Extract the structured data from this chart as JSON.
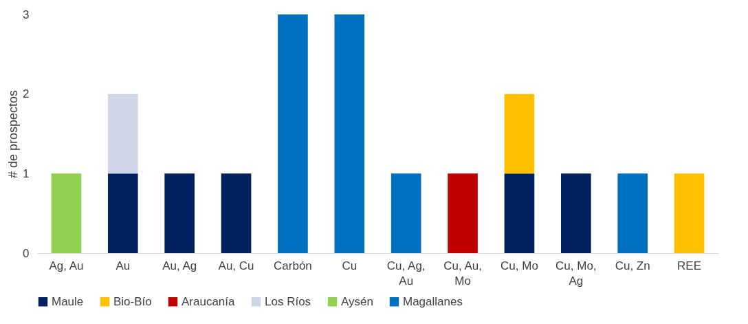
{
  "chart_data": {
    "type": "bar",
    "stacked": true,
    "ylabel": "# de prospectos",
    "categories": [
      "Ag, Au",
      "Au",
      "Au, Ag",
      "Au, Cu",
      "Carbón",
      "Cu",
      "Cu, Ag, Au",
      "Cu, Au, Mo",
      "Cu, Mo",
      "Cu, Mo, Ag",
      "Cu, Zn",
      "REE"
    ],
    "series": [
      {
        "name": "Maule",
        "color": "#002060",
        "values": [
          null,
          1,
          1,
          1,
          null,
          null,
          null,
          null,
          1,
          1,
          null,
          null
        ]
      },
      {
        "name": "Bio-Bío",
        "color": "#ffc000",
        "values": [
          null,
          null,
          null,
          null,
          null,
          null,
          null,
          null,
          1,
          null,
          null,
          1
        ]
      },
      {
        "name": "Araucanía",
        "color": "#c00000",
        "values": [
          null,
          null,
          null,
          null,
          null,
          null,
          null,
          1,
          null,
          null,
          null,
          null
        ]
      },
      {
        "name": "Los Ríos",
        "color": "#cdd5e6",
        "values": [
          null,
          1,
          null,
          null,
          null,
          null,
          null,
          null,
          null,
          null,
          null,
          null
        ]
      },
      {
        "name": "Aysén",
        "color": "#92d050",
        "values": [
          1,
          null,
          null,
          null,
          null,
          null,
          null,
          null,
          null,
          null,
          null,
          null
        ]
      },
      {
        "name": "Magallanes",
        "color": "#0070c0",
        "values": [
          null,
          null,
          null,
          null,
          3,
          3,
          1,
          null,
          null,
          null,
          1,
          null
        ]
      }
    ],
    "ylim": [
      0,
      3
    ],
    "yticks": [
      0,
      1,
      2,
      3
    ],
    "grid": false,
    "legend": "bottom"
  }
}
